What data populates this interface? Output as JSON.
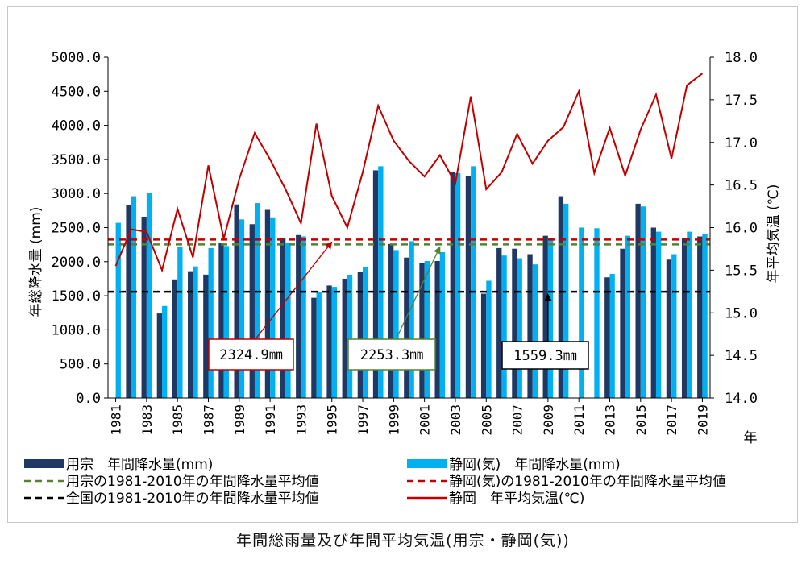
{
  "chart_data": {
    "type": "bar",
    "caption": "年間総雨量及び年間平均気温(用宗・静岡(気))",
    "y_left_label": "年総降水量 (mm)",
    "y_right_label": "年平均気温 (℃)",
    "x_unit_label": "年",
    "y_left_lim": [
      0,
      5000
    ],
    "y_left_ticks": [
      "0.0",
      "500.0",
      "1000.0",
      "1500.0",
      "2000.0",
      "2500.0",
      "3000.0",
      "3500.0",
      "4000.0",
      "4500.0",
      "5000.0"
    ],
    "y_right_lim": [
      14.0,
      18.0
    ],
    "y_right_ticks": [
      "14.0",
      "14.5",
      "15.0",
      "15.5",
      "16.0",
      "16.5",
      "17.0",
      "17.5",
      "18.0"
    ],
    "grid": false,
    "legend_position": "bottom",
    "categories": [
      "1981",
      "1982",
      "1983",
      "1984",
      "1985",
      "1986",
      "1987",
      "1988",
      "1989",
      "1990",
      "1991",
      "1992",
      "1993",
      "1994",
      "1995",
      "1996",
      "1997",
      "1998",
      "1999",
      "2000",
      "2001",
      "2002",
      "2003",
      "2004",
      "2005",
      "2006",
      "2007",
      "2008",
      "2009",
      "2010",
      "2011",
      "2012",
      "2013",
      "2014",
      "2015",
      "2016",
      "2017",
      "2018",
      "2019"
    ],
    "x_tick_labels": [
      "1981",
      "1983",
      "1985",
      "1987",
      "1989",
      "1991",
      "1993",
      "1995",
      "1997",
      "1999",
      "2001",
      "2003",
      "2005",
      "2007",
      "2009",
      "2011",
      "2013",
      "2015",
      "2017",
      "2019"
    ],
    "series": [
      {
        "name": "用宗　年間降水量(mm)",
        "kind": "bar",
        "color": "#1f3864",
        "values": [
          null,
          2830,
          2660,
          1240,
          1740,
          1860,
          1810,
          2270,
          2840,
          2550,
          2760,
          2340,
          2390,
          1470,
          1650,
          1750,
          1850,
          3340,
          2260,
          2060,
          1980,
          2010,
          3310,
          3260,
          1530,
          2200,
          2190,
          2110,
          2380,
          2960,
          null,
          null,
          1770,
          2190,
          2850,
          2500,
          2030,
          2340,
          2370
        ]
      },
      {
        "name": "静岡(気)　年間降水量(mm)",
        "kind": "bar",
        "color": "#00b0f0",
        "values": [
          2570,
          2960,
          3010,
          1350,
          2220,
          1930,
          2200,
          2230,
          2620,
          2860,
          2650,
          2280,
          2370,
          1560,
          1630,
          1810,
          1920,
          3400,
          2170,
          2300,
          2010,
          2140,
          3300,
          3400,
          1720,
          2090,
          2050,
          1960,
          2340,
          2850,
          2500,
          2490,
          1820,
          2380,
          2810,
          2440,
          2110,
          2440,
          2400
        ]
      },
      {
        "name": "静岡　年平均気温(℃)",
        "kind": "line",
        "axis": "right",
        "color": "#c00000",
        "values": [
          15.55,
          15.98,
          15.95,
          15.5,
          16.22,
          15.65,
          16.73,
          15.87,
          16.57,
          17.11,
          16.8,
          16.45,
          16.05,
          17.22,
          16.37,
          16.0,
          16.65,
          17.43,
          17.02,
          16.78,
          16.6,
          16.85,
          16.52,
          17.54,
          16.45,
          16.65,
          17.1,
          16.75,
          17.02,
          17.18,
          17.6,
          16.64,
          17.17,
          16.61,
          17.15,
          17.56,
          16.81,
          17.67,
          17.81
        ]
      }
    ],
    "reference_lines": [
      {
        "name": "用宗の1981-2010年の年間降水量平均値",
        "value": 2253.3,
        "color": "#548235",
        "label": "2253.3㎜",
        "pointer_year": "2002"
      },
      {
        "name": "静岡(気)の1981-2010年の年間降水量平均値",
        "value": 2324.9,
        "color": "#c00000",
        "label": "2324.9㎜",
        "pointer_year": "1995"
      },
      {
        "name": "全国の1981-2010年の年間降水量平均値",
        "value": 1559.3,
        "color": "#000000",
        "label": "1559.3㎜",
        "pointer_year": "2009"
      }
    ]
  }
}
